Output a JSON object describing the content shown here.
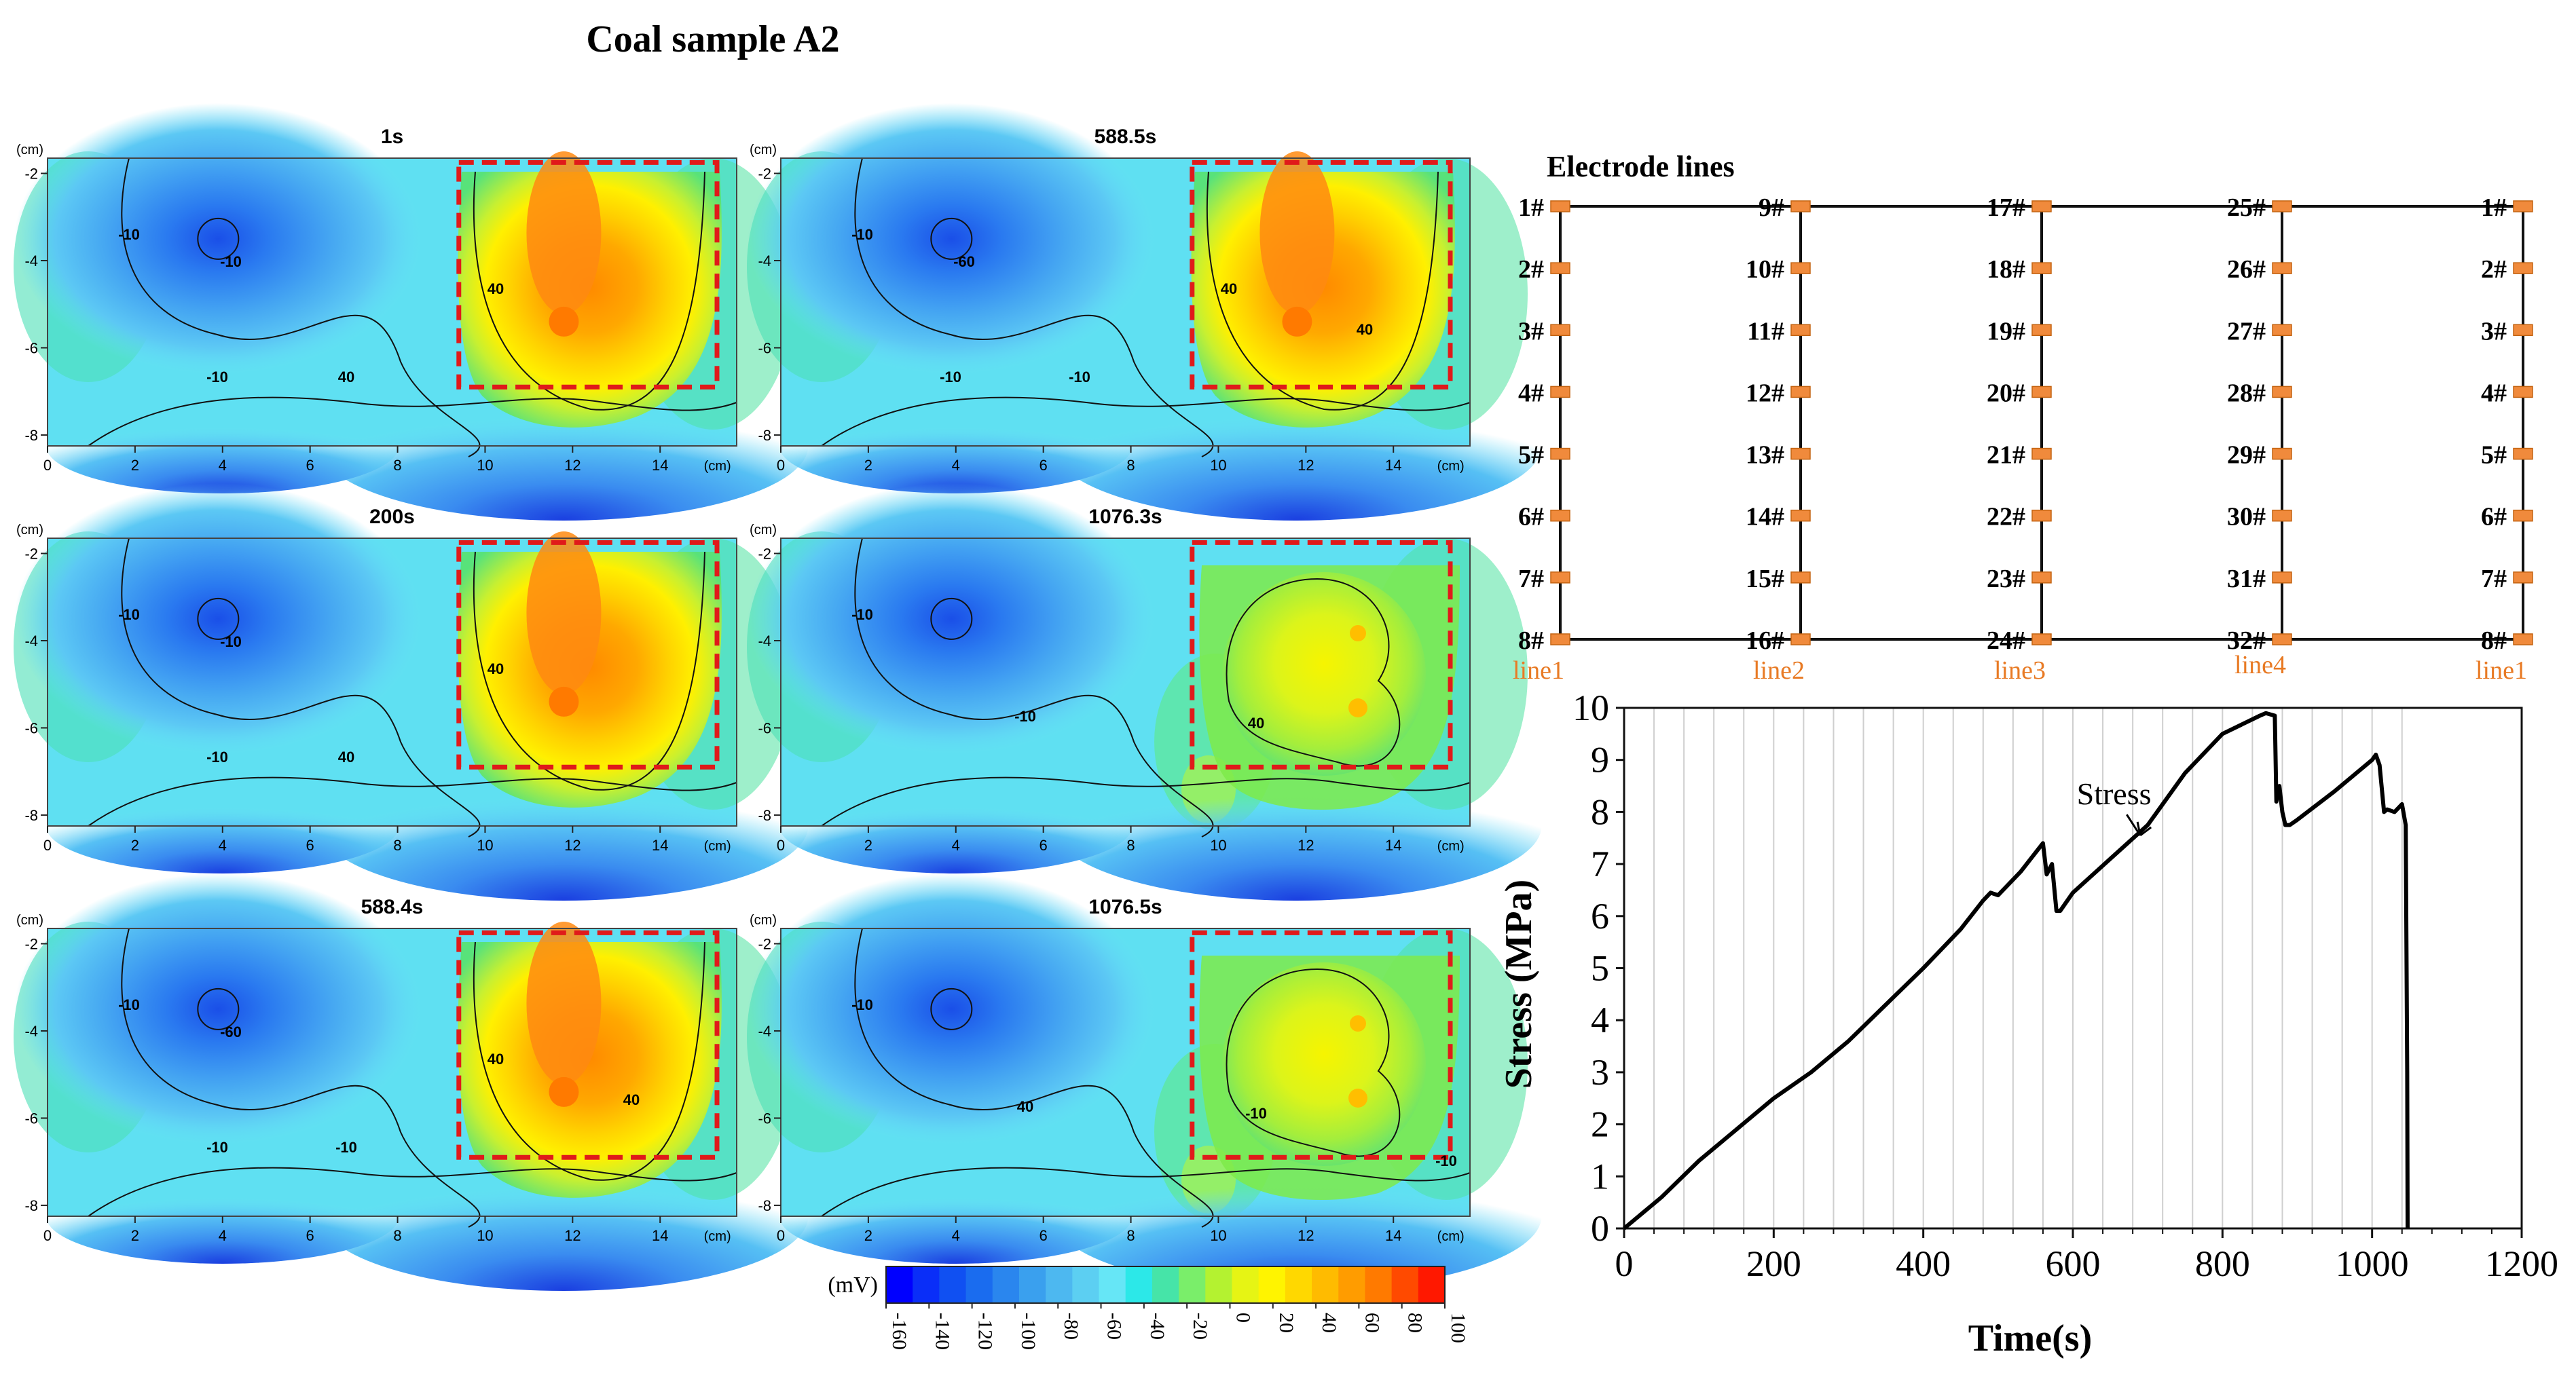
{
  "figure": {
    "title": "Coal sample A2"
  },
  "contour_maps": {
    "unit_cm": "(cm)",
    "x_ticks": [
      "0",
      "2",
      "4",
      "6",
      "8",
      "10",
      "12",
      "14"
    ],
    "y_ticks": [
      "-2",
      "-4",
      "-6",
      "-8"
    ],
    "panels": [
      {
        "time": "1s",
        "state": "early",
        "labels": [
          "-10",
          "-10",
          "-10",
          "40",
          "40"
        ]
      },
      {
        "time": "588.5s",
        "state": "early",
        "labels": [
          "-10",
          "-60",
          "-10",
          "-10",
          "40",
          "40"
        ]
      },
      {
        "time": "200s",
        "state": "early",
        "labels": [
          "-10",
          "-10",
          "-10",
          "40",
          "40"
        ]
      },
      {
        "time": "1076.3s",
        "state": "late",
        "labels": [
          "-10",
          "40",
          "-10"
        ]
      },
      {
        "time": "588.4s",
        "state": "early",
        "labels": [
          "-10",
          "-60",
          "-10",
          "-10",
          "40",
          "40"
        ]
      },
      {
        "time": "1076.5s",
        "state": "late",
        "labels": [
          "-10",
          "-10",
          "40",
          "-10"
        ]
      }
    ],
    "colorbar": {
      "unit": "(mV)",
      "min": -160,
      "max": 100,
      "tick_labels": [
        "-160",
        "-140",
        "-120",
        "-100",
        "-80",
        "-60",
        "-40",
        "-20",
        "0",
        "20",
        "40",
        "60",
        "80",
        "100"
      ],
      "colors": [
        "#0000ff",
        "#0a2ef8",
        "#1050f2",
        "#1a6cef",
        "#2a86ee",
        "#3aa0ee",
        "#4db8f0",
        "#5ccff2",
        "#66e6f6",
        "#2ce8e8",
        "#46e4a8",
        "#7aee6a",
        "#b4f230",
        "#e6f414",
        "#fff400",
        "#ffd800",
        "#ffbb00",
        "#ff9c00",
        "#ff7a00",
        "#ff4a00",
        "#ff1800"
      ]
    }
  },
  "electrode_layout": {
    "title": "Electrode lines",
    "lines": [
      {
        "name": "line1",
        "electrodes": [
          "1#",
          "2#",
          "3#",
          "4#",
          "5#",
          "6#",
          "7#",
          "8#"
        ]
      },
      {
        "name": "line2",
        "electrodes": [
          "9#",
          "10#",
          "11#",
          "12#",
          "13#",
          "14#",
          "15#",
          "16#"
        ]
      },
      {
        "name": "line3",
        "electrodes": [
          "17#",
          "18#",
          "19#",
          "20#",
          "21#",
          "22#",
          "23#",
          "24#"
        ]
      },
      {
        "name": "line4",
        "electrodes": [
          "25#",
          "26#",
          "27#",
          "28#",
          "29#",
          "30#",
          "31#",
          "32#"
        ]
      },
      {
        "name": "line1",
        "electrodes": [
          "1#",
          "2#",
          "3#",
          "4#",
          "5#",
          "6#",
          "7#",
          "8#"
        ]
      }
    ],
    "electrode_color": "#f08a3c",
    "line_label_color": "#e87a24"
  },
  "chart_data": {
    "type": "line",
    "title": "",
    "xlabel": "Time(s)",
    "ylabel": "Stress (MPa)",
    "xlim": [
      0,
      1200
    ],
    "ylim": [
      0,
      10
    ],
    "x_ticks": [
      0,
      200,
      400,
      600,
      800,
      1000,
      1200
    ],
    "y_ticks": [
      0,
      1,
      2,
      3,
      4,
      5,
      6,
      7,
      8,
      9,
      10
    ],
    "annotation": "Stress",
    "vertical_gridlines": [
      40,
      80,
      120,
      160,
      200,
      240,
      280,
      320,
      360,
      400,
      440,
      480,
      520,
      560,
      600,
      640,
      680,
      720,
      760,
      800,
      840,
      880,
      920,
      960,
      1000,
      1040
    ],
    "series": [
      {
        "name": "Stress",
        "x": [
          0,
          50,
          100,
          150,
          200,
          250,
          300,
          350,
          400,
          450,
          480,
          490,
          500,
          530,
          560,
          565,
          572,
          578,
          583,
          600,
          650,
          700,
          750,
          800,
          850,
          858,
          870,
          872,
          876,
          880,
          884,
          890,
          900,
          950,
          1000,
          1005,
          1010,
          1016,
          1020,
          1030,
          1040,
          1045,
          1047,
          1047.5
        ],
        "y": [
          0,
          0.6,
          1.3,
          1.9,
          2.5,
          3.0,
          3.6,
          4.3,
          5.0,
          5.75,
          6.3,
          6.45,
          6.4,
          6.85,
          7.4,
          6.8,
          7.0,
          6.1,
          6.1,
          6.45,
          7.1,
          7.75,
          8.75,
          9.5,
          9.85,
          9.9,
          9.85,
          8.2,
          8.5,
          8.0,
          7.75,
          7.75,
          7.85,
          8.4,
          9.0,
          9.1,
          8.9,
          8.0,
          8.05,
          8.0,
          8.15,
          7.75,
          3.0,
          0
        ]
      }
    ]
  }
}
